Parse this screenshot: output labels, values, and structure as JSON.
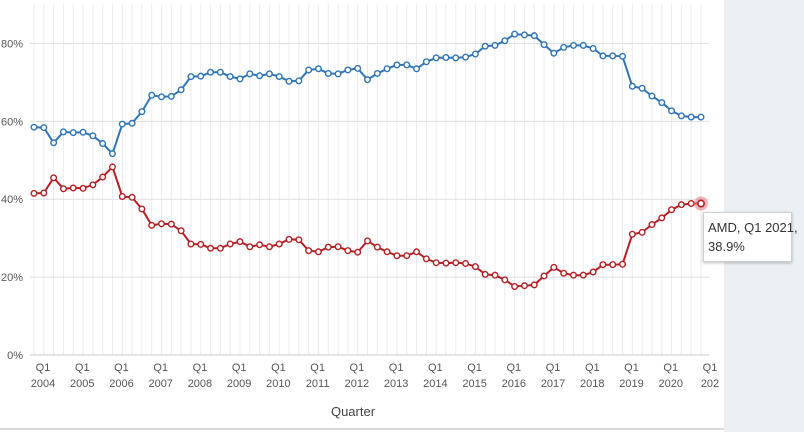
{
  "chart_data": {
    "type": "line",
    "xlabel": "Quarter",
    "ylabel": "",
    "ylim": [
      0,
      0.85
    ],
    "yticks": [
      {
        "value": 0,
        "label": "0%"
      },
      {
        "value": 0.2,
        "label": "20%"
      },
      {
        "value": 0.4,
        "label": "40%"
      },
      {
        "value": 0.6,
        "label": "60%"
      },
      {
        "value": 0.8,
        "label": "80%"
      }
    ],
    "xticks": [
      {
        "q": "Q1",
        "year": "2004"
      },
      {
        "q": "Q1",
        "year": "2005"
      },
      {
        "q": "Q1",
        "year": "2006"
      },
      {
        "q": "Q1",
        "year": "2007"
      },
      {
        "q": "Q1",
        "year": "2008"
      },
      {
        "q": "Q1",
        "year": "2009"
      },
      {
        "q": "Q1",
        "year": "2010"
      },
      {
        "q": "Q1",
        "year": "2011"
      },
      {
        "q": "Q1",
        "year": "2012"
      },
      {
        "q": "Q1",
        "year": "2013"
      },
      {
        "q": "Q1",
        "year": "2014"
      },
      {
        "q": "Q1",
        "year": "2015"
      },
      {
        "q": "Q1",
        "year": "2016"
      },
      {
        "q": "Q1",
        "year": "2017"
      },
      {
        "q": "Q1",
        "year": "2018"
      },
      {
        "q": "Q1",
        "year": "2019"
      },
      {
        "q": "Q1",
        "year": "2020"
      },
      {
        "q": "Q1",
        "year": "202"
      }
    ],
    "x": [
      "Q1 2004",
      "Q2 2004",
      "Q3 2004",
      "Q4 2004",
      "Q1 2005",
      "Q2 2005",
      "Q3 2005",
      "Q4 2005",
      "Q1 2006",
      "Q2 2006",
      "Q3 2006",
      "Q4 2006",
      "Q1 2007",
      "Q2 2007",
      "Q3 2007",
      "Q4 2007",
      "Q1 2008",
      "Q2 2008",
      "Q3 2008",
      "Q4 2008",
      "Q1 2009",
      "Q2 2009",
      "Q3 2009",
      "Q4 2009",
      "Q1 2010",
      "Q2 2010",
      "Q3 2010",
      "Q4 2010",
      "Q1 2011",
      "Q2 2011",
      "Q3 2011",
      "Q4 2011",
      "Q1 2012",
      "Q2 2012",
      "Q3 2012",
      "Q4 2012",
      "Q1 2013",
      "Q2 2013",
      "Q3 2013",
      "Q4 2013",
      "Q1 2014",
      "Q2 2014",
      "Q3 2014",
      "Q4 2014",
      "Q1 2015",
      "Q2 2015",
      "Q3 2015",
      "Q4 2015",
      "Q1 2016",
      "Q2 2016",
      "Q3 2016",
      "Q4 2016",
      "Q1 2017",
      "Q2 2017",
      "Q3 2017",
      "Q4 2017",
      "Q1 2018",
      "Q2 2018",
      "Q3 2018",
      "Q4 2018",
      "Q1 2019",
      "Q2 2019",
      "Q3 2019",
      "Q4 2019",
      "Q1 2020",
      "Q2 2020",
      "Q3 2020",
      "Q4 2020",
      "Q1 2021"
    ],
    "series": [
      {
        "color": "#2f74b5",
        "values": [
          0.585,
          0.584,
          0.545,
          0.573,
          0.571,
          0.572,
          0.563,
          0.543,
          0.517,
          0.593,
          0.595,
          0.625,
          0.667,
          0.663,
          0.664,
          0.681,
          0.715,
          0.716,
          0.726,
          0.726,
          0.715,
          0.709,
          0.722,
          0.717,
          0.722,
          0.715,
          0.703,
          0.704,
          0.732,
          0.735,
          0.723,
          0.722,
          0.732,
          0.736,
          0.707,
          0.723,
          0.735,
          0.745,
          0.745,
          0.735,
          0.753,
          0.763,
          0.764,
          0.763,
          0.765,
          0.773,
          0.793,
          0.795,
          0.807,
          0.824,
          0.822,
          0.82,
          0.797,
          0.775,
          0.79,
          0.795,
          0.795,
          0.787,
          0.768,
          0.768,
          0.767,
          0.69,
          0.685,
          0.665,
          0.648,
          0.627,
          0.614,
          0.611,
          0.611
        ]
      },
      {
        "name": "AMD",
        "color": "#b52025",
        "values": [
          0.415,
          0.416,
          0.455,
          0.427,
          0.429,
          0.428,
          0.437,
          0.457,
          0.483,
          0.407,
          0.405,
          0.375,
          0.333,
          0.337,
          0.336,
          0.319,
          0.285,
          0.284,
          0.274,
          0.274,
          0.285,
          0.291,
          0.278,
          0.283,
          0.278,
          0.285,
          0.297,
          0.296,
          0.268,
          0.265,
          0.277,
          0.278,
          0.268,
          0.264,
          0.293,
          0.277,
          0.265,
          0.255,
          0.255,
          0.265,
          0.247,
          0.237,
          0.236,
          0.237,
          0.235,
          0.227,
          0.207,
          0.205,
          0.193,
          0.176,
          0.178,
          0.18,
          0.203,
          0.225,
          0.21,
          0.205,
          0.205,
          0.213,
          0.232,
          0.232,
          0.233,
          0.31,
          0.315,
          0.335,
          0.352,
          0.373,
          0.386,
          0.389,
          0.389
        ]
      }
    ],
    "tooltip": {
      "line1": "AMD, Q1 2021,",
      "line2": "38.9%"
    },
    "grid": true
  }
}
